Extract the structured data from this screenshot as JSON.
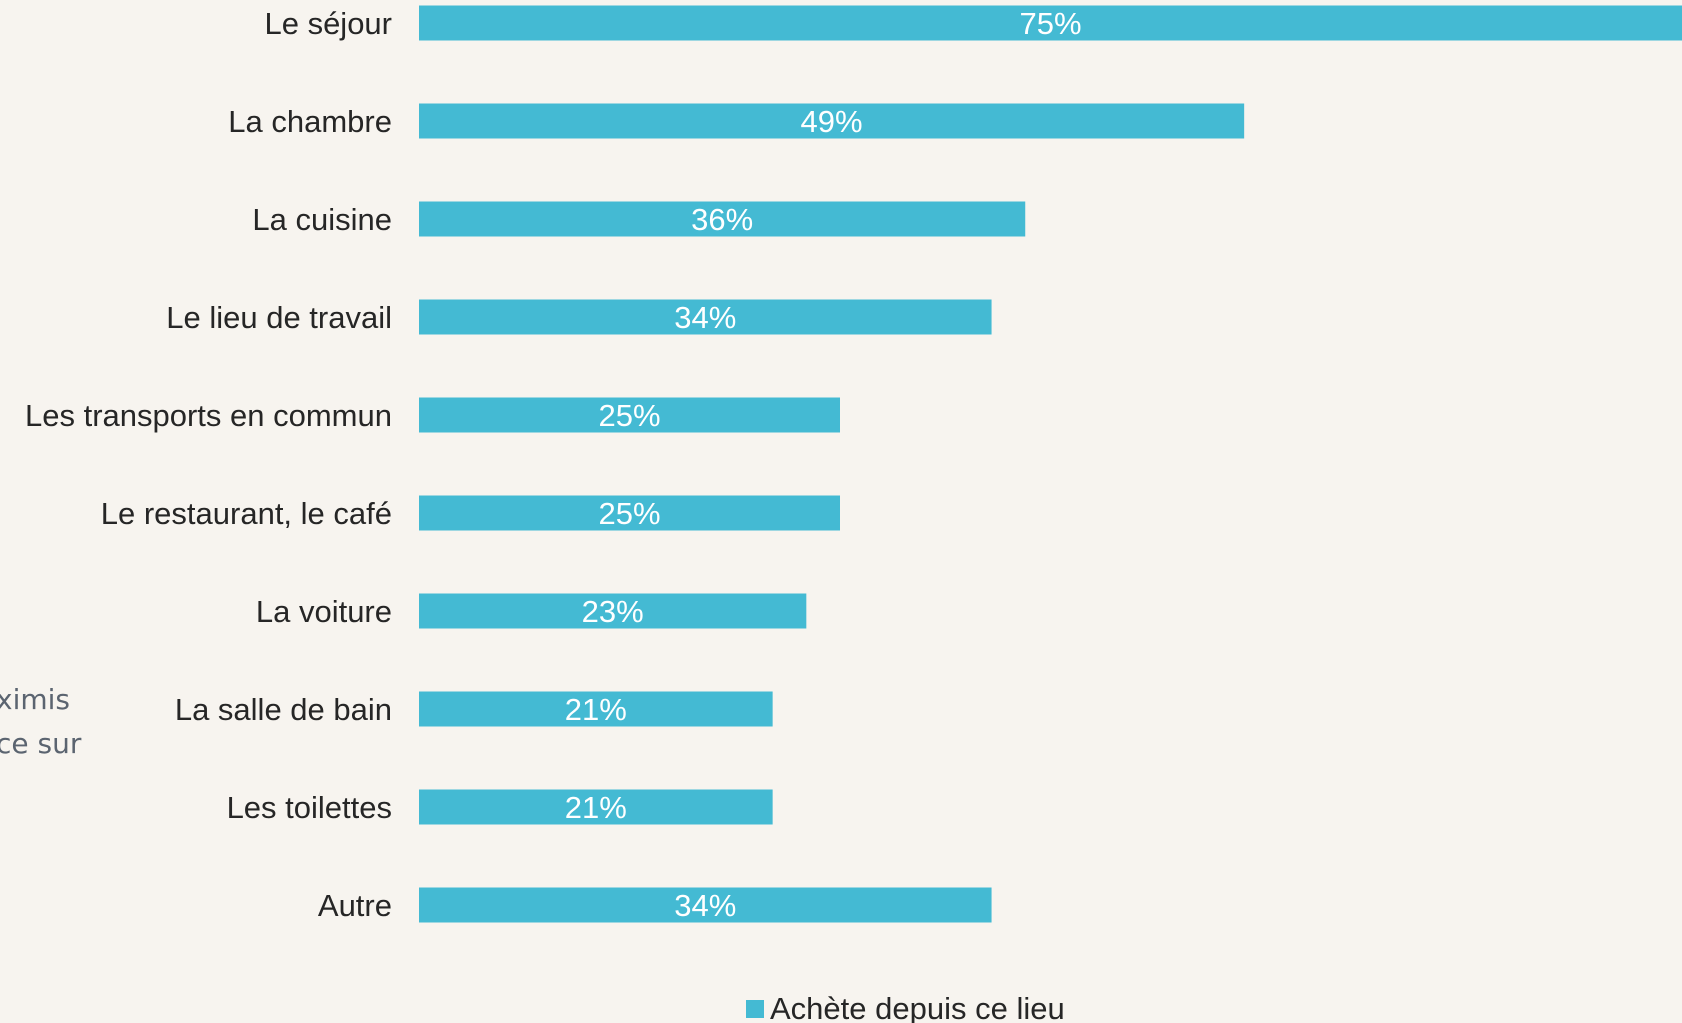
{
  "side_note": {
    "line1": "ximis",
    "line2": "ce sur"
  },
  "colors": {
    "bar": "#44bad3",
    "background": "#f7f4ef",
    "label_text": "#262626",
    "bar_label_text": "#ffffff"
  },
  "chart_data": {
    "type": "bar",
    "orientation": "horizontal",
    "categories": [
      "Le séjour",
      "La chambre",
      "La cuisine",
      "Le lieu de travail",
      "Les transports en commun",
      "Le restaurant, le café",
      "La voiture",
      "La salle de bain",
      "Les toilettes",
      "Autre"
    ],
    "series": [
      {
        "name": "Achète depuis ce lieu",
        "values": [
          75,
          49,
          36,
          34,
          25,
          25,
          23,
          21,
          21,
          34
        ],
        "data_labels": [
          "75%",
          "49%",
          "36%",
          "34%",
          "25%",
          "25%",
          "23%",
          "21%",
          "21%",
          "34%"
        ]
      }
    ],
    "unit": "%",
    "title": "",
    "xlabel": "",
    "ylabel": "",
    "xlim": [
      0,
      75
    ],
    "grid": false,
    "legend": "bottom"
  }
}
